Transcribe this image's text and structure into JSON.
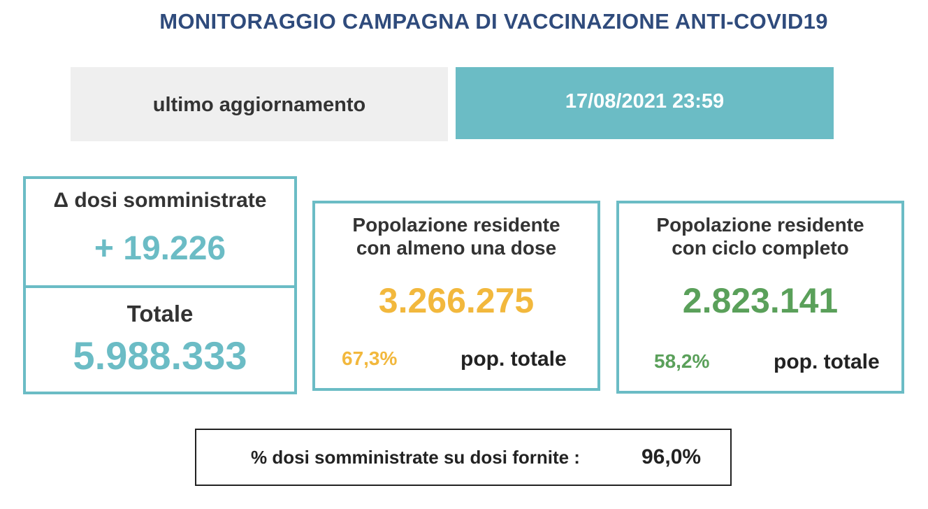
{
  "header": {
    "title": "MONITORAGGIO CAMPAGNA DI VACCINAZIONE ANTI-COVID19"
  },
  "update": {
    "label": "ultimo aggiornamento",
    "value": "17/08/2021 23:59"
  },
  "delta": {
    "label": "Δ dosi somministrate",
    "value": "+ 19.226"
  },
  "total": {
    "label": "Totale",
    "value": "5.988.333"
  },
  "at_least_one_dose": {
    "label_line1": "Popolazione residente",
    "label_line2": "con almeno una dose",
    "value": "3.266.275",
    "percent": "67,3%",
    "percent_label": "pop. totale"
  },
  "full_cycle": {
    "label_line1": "Popolazione residente",
    "label_line2": "con ciclo completo",
    "value": "2.823.141",
    "percent": "58,2%",
    "percent_label": "pop. totale"
  },
  "ratio": {
    "label": "% dosi somministrate su dosi fornite :",
    "value": "96,0%"
  },
  "colors": {
    "title": "#2f4b7c",
    "accent": "#6bbcc5",
    "first_dose": "#f2b83d",
    "full_cycle": "#5aa05a",
    "label_bg": "#efefef"
  }
}
